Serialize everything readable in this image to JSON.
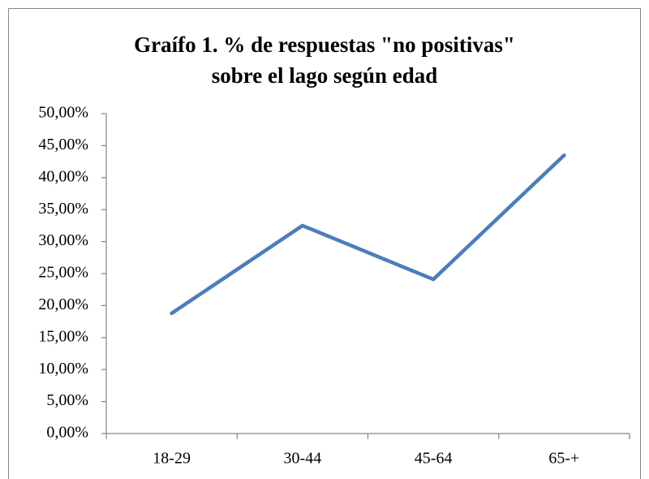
{
  "chart_data": {
    "type": "line",
    "title": [
      "Graífo 1. % de respuestas \"no positivas\"",
      "sobre el lago según edad"
    ],
    "categories": [
      "18-29",
      "30-44",
      "45-64",
      "65-+"
    ],
    "series": [
      {
        "name": null,
        "color": "#4a7ebb",
        "values": [
          18.8,
          32.5,
          24.1,
          43.5
        ]
      }
    ],
    "ylim": [
      0,
      50
    ],
    "yticks": [
      {
        "value": 0,
        "label": "0,00%"
      },
      {
        "value": 5,
        "label": "5,00%"
      },
      {
        "value": 10,
        "label": "10,00%"
      },
      {
        "value": 15,
        "label": "15,00%"
      },
      {
        "value": 20,
        "label": "20,00%"
      },
      {
        "value": 25,
        "label": "25,00%"
      },
      {
        "value": 30,
        "label": "30,00%"
      },
      {
        "value": 35,
        "label": "35,00%"
      },
      {
        "value": 40,
        "label": "40,00%"
      },
      {
        "value": 45,
        "label": "45,00%"
      },
      {
        "value": 50,
        "label": "50,00%"
      }
    ],
    "grid": false
  }
}
